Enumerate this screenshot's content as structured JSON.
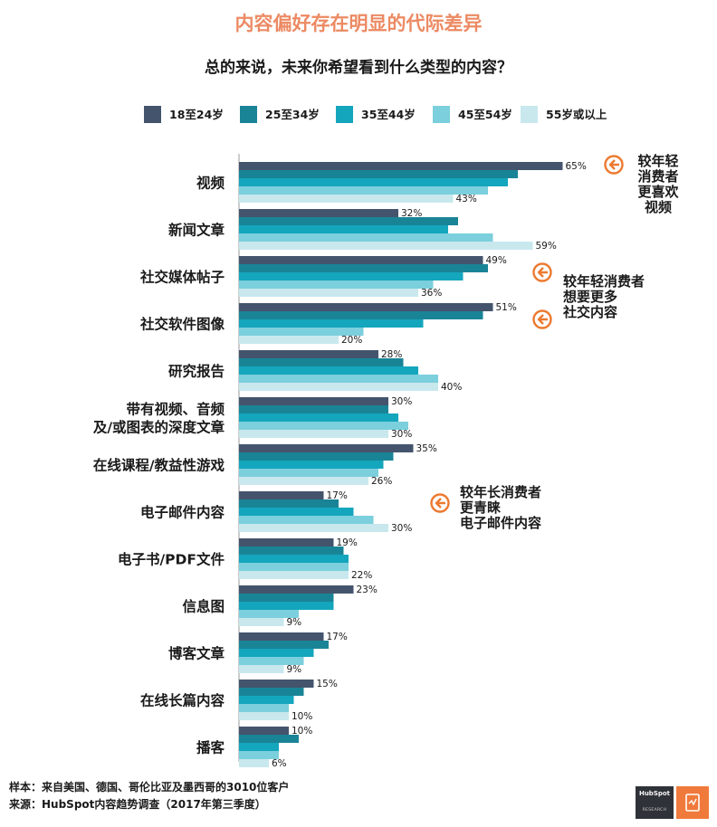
{
  "header": {
    "title": "内容偏好存在明显的代际差异",
    "question": "总的来说，未来你希望看到什么类型的内容？"
  },
  "chart_data": {
    "type": "bar",
    "orientation": "horizontal",
    "title": "总的来说，未来你希望看到什么类型的内容？",
    "categories": [
      "视频",
      "新闻文章",
      "社交媒体帖子",
      "社交软件图像",
      "研究报告",
      "带有视频、音频\n及/或图表的深度文章",
      "在线课程/教益性游戏",
      "电子邮件内容",
      "电子书/PDF文件",
      "信息图",
      "博客文章",
      "在线长篇内容",
      "播客"
    ],
    "series": [
      {
        "name": "18至24岁",
        "color": "#44546c",
        "values": [
          65,
          32,
          49,
          51,
          28,
          30,
          35,
          17,
          19,
          23,
          17,
          15,
          10
        ]
      },
      {
        "name": "25至34岁",
        "color": "#1a8497",
        "values": [
          56,
          44,
          50,
          49,
          33,
          30,
          31,
          20,
          21,
          19,
          18,
          13,
          12
        ]
      },
      {
        "name": "35至44岁",
        "color": "#14a6bd",
        "values": [
          54,
          42,
          45,
          37,
          36,
          32,
          29,
          23,
          22,
          19,
          15,
          11,
          8
        ]
      },
      {
        "name": "45至54岁",
        "color": "#7ccfdc",
        "values": [
          50,
          51,
          39,
          25,
          40,
          34,
          28,
          27,
          22,
          12,
          13,
          10,
          8
        ]
      },
      {
        "name": "55岁或以上",
        "color": "#c8e8ee",
        "values": [
          43,
          59,
          36,
          20,
          40,
          30,
          26,
          30,
          22,
          9,
          9,
          10,
          6
        ]
      }
    ],
    "labeled": [
      {
        "category": 0,
        "series": 0,
        "label": "65%"
      },
      {
        "category": 0,
        "series": 4,
        "label": "43%"
      },
      {
        "category": 1,
        "series": 0,
        "label": "32%"
      },
      {
        "category": 1,
        "series": 4,
        "label": "59%"
      },
      {
        "category": 2,
        "series": 0,
        "label": "49%"
      },
      {
        "category": 2,
        "series": 4,
        "label": "36%"
      },
      {
        "category": 3,
        "series": 0,
        "label": "51%"
      },
      {
        "category": 3,
        "series": 4,
        "label": "20%"
      },
      {
        "category": 4,
        "series": 0,
        "label": "28%"
      },
      {
        "category": 4,
        "series": 4,
        "label": "40%"
      },
      {
        "category": 5,
        "series": 0,
        "label": "30%"
      },
      {
        "category": 5,
        "series": 4,
        "label": "30%"
      },
      {
        "category": 6,
        "series": 0,
        "label": "35%"
      },
      {
        "category": 6,
        "series": 4,
        "label": "26%"
      },
      {
        "category": 7,
        "series": 0,
        "label": "17%"
      },
      {
        "category": 7,
        "series": 4,
        "label": "30%"
      },
      {
        "category": 8,
        "series": 0,
        "label": "19%"
      },
      {
        "category": 8,
        "series": 4,
        "label": "22%"
      },
      {
        "category": 9,
        "series": 0,
        "label": "23%"
      },
      {
        "category": 9,
        "series": 4,
        "label": "9%"
      },
      {
        "category": 10,
        "series": 0,
        "label": "17%"
      },
      {
        "category": 10,
        "series": 4,
        "label": "9%"
      },
      {
        "category": 11,
        "series": 0,
        "label": "15%"
      },
      {
        "category": 11,
        "series": 4,
        "label": "10%"
      },
      {
        "category": 12,
        "series": 0,
        "label": "10%"
      },
      {
        "category": 12,
        "series": 4,
        "label": "6%"
      }
    ],
    "xlim": [
      0,
      70
    ],
    "legend_position": "top",
    "grid": false
  },
  "annotations": {
    "video_note": [
      "较年轻",
      "消费者",
      "更喜欢",
      "视频"
    ],
    "social_note": [
      "较年轻消费者",
      "想要更多",
      "社交内容"
    ],
    "email_note": [
      "较年长消费者",
      "更青睐",
      "电子邮件内容"
    ],
    "arrow_color": "#ec7a30"
  },
  "footer": {
    "sample": "样本：来自美国、德国、哥伦比亚及墨西哥的3010位客户",
    "source": "来源：HubSpot内容趋势调查（2017年第三季度）"
  },
  "logo": {
    "brand": "HubSpot",
    "sub": "RESEARCH"
  }
}
